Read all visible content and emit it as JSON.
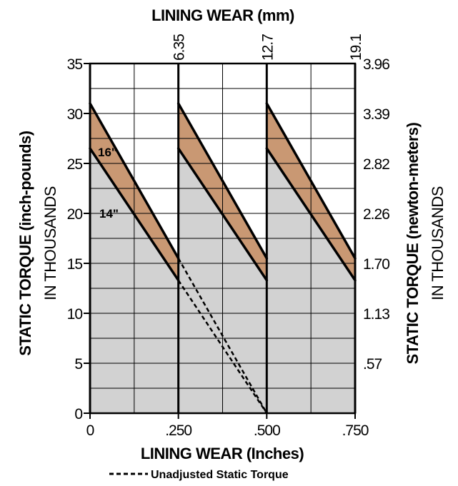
{
  "chart_data": {
    "type": "line",
    "title_top": "LINING WEAR (mm)",
    "xlabel": "LINING WEAR (Inches)",
    "ylabel_left_line1": "STATIC TORQUE (inch-pounds)",
    "ylabel_left_line2": "IN THOUSANDS",
    "ylabel_right_line1": "STATIC TORQUE (newton-meters)",
    "ylabel_right_line2": "IN THOUSANDS",
    "xlim": [
      0,
      0.75
    ],
    "ylim": [
      0,
      35
    ],
    "x_ticks": [
      {
        "value": 0,
        "label": "0"
      },
      {
        "value": 0.25,
        "label": ".250"
      },
      {
        "value": 0.5,
        "label": ".500"
      },
      {
        "value": 0.75,
        "label": ".750"
      }
    ],
    "x_top_ticks": [
      {
        "value": 0.25,
        "label": "6.35"
      },
      {
        "value": 0.5,
        "label": "12.7"
      },
      {
        "value": 0.75,
        "label": "19.1"
      }
    ],
    "y_left_ticks": [
      {
        "value": 0,
        "label": "0"
      },
      {
        "value": 5,
        "label": "5"
      },
      {
        "value": 10,
        "label": "10"
      },
      {
        "value": 15,
        "label": "15"
      },
      {
        "value": 20,
        "label": "20"
      },
      {
        "value": 25,
        "label": "25"
      },
      {
        "value": 30,
        "label": "30"
      },
      {
        "value": 35,
        "label": "35"
      }
    ],
    "y_right_ticks": [
      {
        "value": 5,
        "label": ".57"
      },
      {
        "value": 10,
        "label": "1.13"
      },
      {
        "value": 15,
        "label": "1.70"
      },
      {
        "value": 20,
        "label": "2.26"
      },
      {
        "value": 25,
        "label": "2.82"
      },
      {
        "value": 30,
        "label": "3.39"
      },
      {
        "value": 35,
        "label": "3.96"
      }
    ],
    "grid": true,
    "x_grid_step": 0.125,
    "y_grid_step": 2.5,
    "series": [
      {
        "name": "16\"",
        "x": [
          0,
          0.25,
          0.25,
          0.5,
          0.5,
          0.75
        ],
        "y": [
          31,
          15.5,
          31,
          15.5,
          31,
          15.5
        ]
      },
      {
        "name": "14\"",
        "x": [
          0,
          0.25,
          0.25,
          0.5,
          0.5,
          0.75
        ],
        "y": [
          26.5,
          13.3,
          26.5,
          13.3,
          26.5,
          13.3
        ]
      }
    ],
    "unadjusted": [
      {
        "x": [
          0.25,
          0.5
        ],
        "y": [
          15.5,
          0
        ]
      },
      {
        "x": [
          0.25,
          0.5
        ],
        "y": [
          13.3,
          0
        ]
      }
    ],
    "legend": {
      "text": "Unadjusted Static Torque",
      "placement": "bottom"
    },
    "colors": {
      "band": "#c99873",
      "below": "#d2d2d2",
      "line": "#000000",
      "grid": "#000000"
    }
  }
}
